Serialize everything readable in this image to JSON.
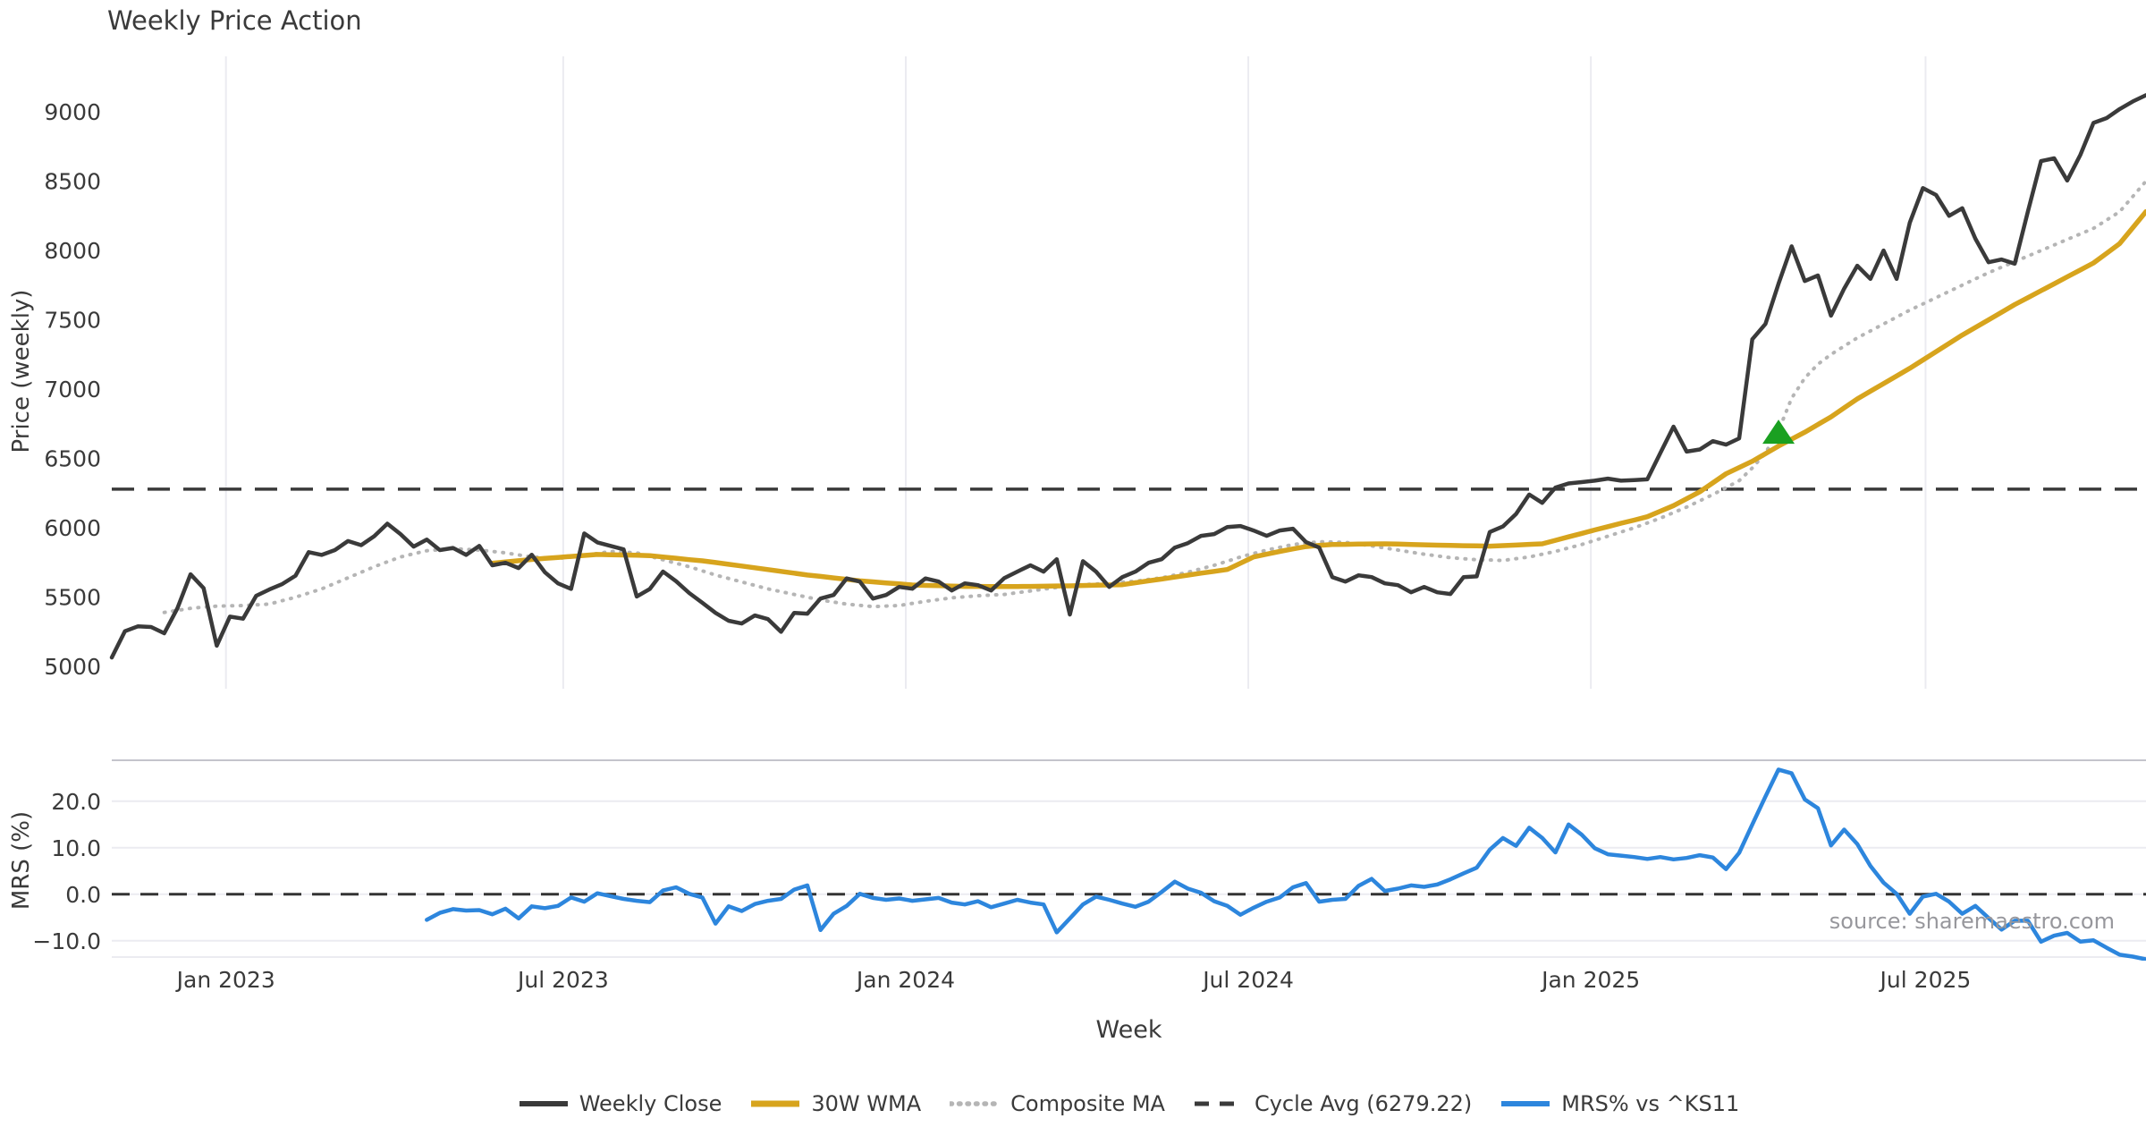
{
  "title": "Weekly Price Action",
  "source_note": "source: sharemaestro.com",
  "chart_data": {
    "type": "line",
    "title": "Weekly Price Action",
    "xlabel": "Week",
    "grid": "vertical-top-panel, horizontal-bottom-panel",
    "legend_position": "bottom-center",
    "x_ticks": [
      {
        "label": "Jan 2023",
        "week": 8.7
      },
      {
        "label": "Jul 2023",
        "week": 34.4
      },
      {
        "label": "Jan 2024",
        "week": 60.5
      },
      {
        "label": "Jul 2024",
        "week": 86.6
      },
      {
        "label": "Jan 2025",
        "week": 112.7
      },
      {
        "label": "Jul 2025",
        "week": 138.2
      }
    ],
    "weeks_total": 155,
    "top_panel": {
      "ylabel": "Price (weekly)",
      "ylim": [
        4840,
        9400
      ],
      "yticks": [
        5000,
        5500,
        6000,
        6500,
        7000,
        7500,
        8000,
        8500,
        9000
      ],
      "cycle_avg": 6279.22,
      "marker": {
        "shape": "triangle-up",
        "color": "#1aa021",
        "week": 127,
        "value": 6690
      },
      "series": [
        {
          "name": "Weekly Close",
          "color": "#3a3a3a",
          "style": "solid",
          "width": 4.5,
          "start_week": 0,
          "values": [
            5065,
            5255,
            5290,
            5285,
            5240,
            5420,
            5665,
            5565,
            5150,
            5360,
            5345,
            5510,
            5555,
            5595,
            5655,
            5825,
            5805,
            5840,
            5905,
            5875,
            5940,
            6030,
            5955,
            5865,
            5915,
            5840,
            5855,
            5805,
            5870,
            5730,
            5748,
            5710,
            5806,
            5680,
            5600,
            5560,
            5960,
            5895,
            5870,
            5845,
            5505,
            5560,
            5685,
            5615,
            5530,
            5460,
            5387,
            5330,
            5310,
            5368,
            5342,
            5250,
            5387,
            5381,
            5490,
            5516,
            5635,
            5613,
            5490,
            5516,
            5574,
            5561,
            5635,
            5613,
            5548,
            5600,
            5587,
            5548,
            5637,
            5684,
            5730,
            5684,
            5774,
            5375,
            5760,
            5684,
            5574,
            5645,
            5684,
            5748,
            5774,
            5858,
            5890,
            5942,
            5955,
            6006,
            6013,
            5981,
            5942,
            5981,
            5994,
            5897,
            5858,
            5645,
            5613,
            5658,
            5645,
            5600,
            5587,
            5535,
            5574,
            5535,
            5523,
            5645,
            5650,
            5970,
            6010,
            6100,
            6240,
            6180,
            6290,
            6320,
            6330,
            6340,
            6355,
            6340,
            6345,
            6350,
            6540,
            6730,
            6550,
            6565,
            6625,
            6600,
            6645,
            7360,
            7470,
            7760,
            8030,
            7780,
            7820,
            7530,
            7725,
            7890,
            7795,
            8000,
            7795,
            8200,
            8450,
            8400,
            8250,
            8305,
            8085,
            7915,
            7935,
            7905,
            8280,
            8645,
            8665,
            8505,
            8690,
            8920,
            8955,
            9020,
            9075,
            9120
          ]
        },
        {
          "name": "30W WMA",
          "color": "#d7a41d",
          "style": "solid",
          "width": 5.5,
          "start_week": 29,
          "values": [
            5745,
            5754,
            5763,
            5772,
            5780,
            5787,
            5794,
            5801,
            5808,
            5806,
            5804,
            5802,
            5800,
            5790,
            5781,
            5771,
            5762,
            5750,
            5737,
            5725,
            5712,
            5699,
            5686,
            5673,
            5660,
            5650,
            5639,
            5629,
            5618,
            5611,
            5603,
            5596,
            5588,
            5585,
            5583,
            5580,
            5578,
            5578,
            5577,
            5577,
            5577,
            5578,
            5579,
            5581,
            5582,
            5584,
            5586,
            5588,
            5590,
            5604,
            5618,
            5631,
            5645,
            5659,
            5673,
            5686,
            5700,
            5745,
            5790,
            5810,
            5830,
            5848,
            5865,
            5873,
            5880,
            5881,
            5883,
            5884,
            5885,
            5883,
            5880,
            5878,
            5875,
            5873,
            5871,
            5870,
            5868,
            5872,
            5876,
            5881,
            5885,
            5910,
            5935,
            5960,
            5985,
            6009,
            6033,
            6056,
            6080,
            6120,
            6160,
            6210,
            6260,
            6325,
            6390,
            6435,
            6480,
            6535,
            6590,
            6640,
            6690,
            6745,
            6800,
            6865,
            6930,
            6985,
            7040,
            7095,
            7150,
            7210,
            7270,
            7330,
            7390,
            7445,
            7500,
            7555,
            7610,
            7660,
            7710,
            7760,
            7810,
            7860,
            7910,
            7980,
            8050,
            8165,
            8280
          ]
        },
        {
          "name": "Composite MA",
          "color": "#b5b5b5",
          "style": "dotted",
          "width": 4,
          "start_week": 4,
          "values": [
            5390,
            5405,
            5420,
            5428,
            5435,
            5438,
            5440,
            5445,
            5450,
            5475,
            5500,
            5530,
            5560,
            5600,
            5640,
            5680,
            5720,
            5755,
            5790,
            5813,
            5835,
            5843,
            5850,
            5845,
            5840,
            5830,
            5820,
            5805,
            5790,
            5785,
            5780,
            5790,
            5800,
            5815,
            5830,
            5825,
            5820,
            5795,
            5770,
            5745,
            5720,
            5690,
            5660,
            5635,
            5610,
            5585,
            5560,
            5540,
            5520,
            5500,
            5480,
            5465,
            5450,
            5441,
            5432,
            5436,
            5440,
            5455,
            5470,
            5483,
            5495,
            5503,
            5510,
            5515,
            5520,
            5533,
            5545,
            5558,
            5570,
            5580,
            5590,
            5595,
            5600,
            5608,
            5615,
            5628,
            5640,
            5660,
            5680,
            5705,
            5730,
            5760,
            5790,
            5815,
            5840,
            5860,
            5880,
            5890,
            5900,
            5898,
            5895,
            5883,
            5870,
            5855,
            5840,
            5825,
            5810,
            5798,
            5785,
            5778,
            5770,
            5768,
            5765,
            5778,
            5790,
            5810,
            5830,
            5855,
            5880,
            5910,
            5940,
            5970,
            6000,
            6035,
            6070,
            6110,
            6150,
            6195,
            6240,
            6290,
            6340,
            6432,
            6540,
            6700,
            6935,
            7080,
            7180,
            7250,
            7310,
            7370,
            7420,
            7470,
            7520,
            7570,
            7615,
            7660,
            7705,
            7750,
            7795,
            7840,
            7880,
            7920,
            7960,
            8000,
            8040,
            8080,
            8120,
            8160,
            8220,
            8280,
            8390,
            8500
          ]
        },
        {
          "name": "Cycle Avg (6279.22)",
          "color": "#3a3a3a",
          "style": "dashed",
          "width": 3.5,
          "type": "hline",
          "value": 6279.22
        }
      ]
    },
    "bottom_panel": {
      "ylabel": "MRS (%)",
      "ylim": [
        -13.5,
        28.8
      ],
      "yticks": [
        {
          "value": 20,
          "label": "20.0"
        },
        {
          "value": 10,
          "label": "10.0"
        },
        {
          "value": 0,
          "label": "0.0"
        },
        {
          "value": -10,
          "label": "−10.0"
        }
      ],
      "zero_line_dashed": true,
      "series": [
        {
          "name": "MRS% vs ^KS11",
          "color": "#2d86dd",
          "style": "solid",
          "width": 4.5,
          "start_week": 24,
          "values": [
            -5.5,
            -4.0,
            -3.2,
            -3.5,
            -3.4,
            -4.3,
            -3.1,
            -5.2,
            -2.6,
            -3.0,
            -2.5,
            -0.7,
            -1.6,
            0.2,
            -0.4,
            -1.0,
            -1.4,
            -1.7,
            0.8,
            1.5,
            0.1,
            -0.7,
            -6.3,
            -2.6,
            -3.6,
            -2.1,
            -1.4,
            -1.0,
            1.0,
            1.9,
            -7.7,
            -4.2,
            -2.5,
            0.1,
            -0.8,
            -1.2,
            -0.9,
            -1.4,
            -1.1,
            -0.8,
            -1.8,
            -2.2,
            -1.5,
            -2.8,
            -2.0,
            -1.2,
            -1.8,
            -2.2,
            -8.2,
            -5.2,
            -2.2,
            -0.5,
            -1.2,
            -2.0,
            -2.7,
            -1.6,
            0.5,
            2.7,
            1.2,
            0.3,
            -1.5,
            -2.5,
            -4.4,
            -2.9,
            -1.6,
            -0.7,
            1.5,
            2.4,
            -1.6,
            -1.2,
            -1.0,
            1.8,
            3.3,
            0.7,
            1.2,
            1.9,
            1.6,
            2.1,
            3.2,
            4.5,
            5.7,
            9.6,
            12.1,
            10.4,
            14.3,
            12.1,
            9.0,
            15.0,
            12.8,
            9.9,
            8.6,
            8.3,
            8.0,
            7.6,
            8.0,
            7.5,
            7.8,
            8.4,
            7.9,
            5.4,
            8.9,
            15.0,
            21.0,
            26.8,
            26.0,
            20.4,
            18.5,
            10.5,
            13.9,
            10.8,
            6.1,
            2.5,
            0.1,
            -4.2,
            -0.5,
            0.1,
            -1.6,
            -4.2,
            -2.5,
            -5.1,
            -7.6,
            -5.7,
            -5.7,
            -10.2,
            -8.9,
            -8.3,
            -10.2,
            -9.9,
            -11.5,
            -13.0,
            -13.4,
            -14.0
          ]
        }
      ]
    },
    "legend": [
      {
        "label": "Weekly Close",
        "color": "#3a3a3a",
        "style": "solid",
        "width": 4.5
      },
      {
        "label": "30W WMA",
        "color": "#d7a41d",
        "style": "solid",
        "width": 5.5
      },
      {
        "label": "Composite MA",
        "color": "#b5b5b5",
        "style": "dotted",
        "width": 4
      },
      {
        "label": "Cycle Avg (6279.22)",
        "color": "#3a3a3a",
        "style": "dashed",
        "width": 3.5
      },
      {
        "label": "MRS% vs ^KS11",
        "color": "#2d86dd",
        "style": "solid",
        "width": 4.5
      }
    ],
    "colors": {
      "background": "#ffffff",
      "grid_light": "#ebebf1",
      "panel_border": "#c4c4cc",
      "text": "#3a3a3a",
      "source_text": "#97979c",
      "marker_green": "#1aa021"
    }
  }
}
